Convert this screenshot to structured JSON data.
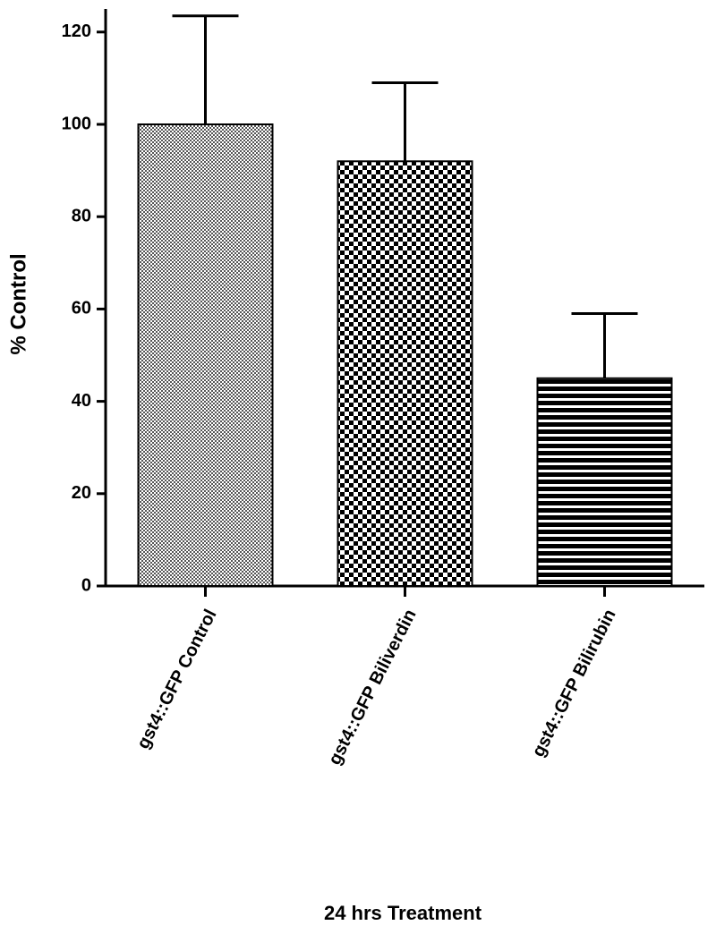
{
  "chart_data": {
    "type": "bar",
    "y_label": "% Control",
    "x_label": "24 hrs Treatment",
    "categories": [
      "gst4::GFP Control",
      "gst4::GFP Biliverdin",
      "gst4::GFP Bilirubin"
    ],
    "values": [
      100,
      92,
      45
    ],
    "errors": [
      23.5,
      17,
      14
    ],
    "ylim": [
      0,
      125
    ],
    "yticks": [
      0,
      20,
      40,
      60,
      80,
      100,
      120
    ],
    "color": "#000000"
  }
}
